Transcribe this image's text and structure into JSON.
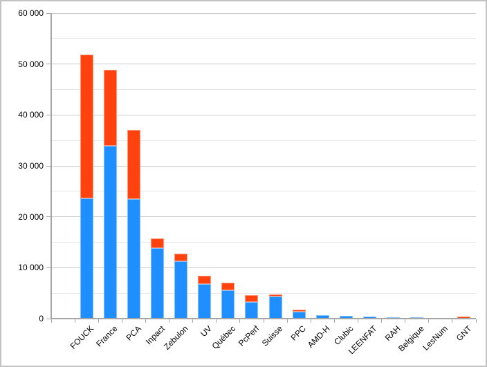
{
  "chart_data": {
    "type": "bar",
    "stacked": true,
    "legend": "none",
    "grid": "horizontal",
    "leading_empty_slot": true,
    "categories": [
      "FOUCK",
      "France",
      "PCA",
      "Inpact",
      "Zebulon",
      "UV",
      "Québec",
      "PcPerf",
      "Suisse",
      "PPC",
      "AMD-H",
      "Clubic",
      "LEENFAT",
      "RAH",
      "Belgique",
      "LesNum",
      "GNT"
    ],
    "series": [
      {
        "name": "blue-segment",
        "color": "#1F8FFF",
        "values": [
          23600,
          34000,
          23500,
          13900,
          11300,
          6800,
          5600,
          3300,
          4300,
          1300,
          650,
          500,
          400,
          250,
          250,
          200,
          0
        ]
      },
      {
        "name": "orange-segment",
        "color": "#FF420E",
        "values": [
          28300,
          14900,
          13600,
          1900,
          1500,
          1600,
          1400,
          1300,
          400,
          400,
          0,
          0,
          0,
          0,
          0,
          0,
          450
        ]
      }
    ],
    "ylim": [
      0,
      60000
    ],
    "y_major_step": 10000,
    "y_minor_step": 5000,
    "y_tick_labels": [
      "0",
      "10 000",
      "20 000",
      "30 000",
      "40 000",
      "50 000",
      "60 000"
    ]
  },
  "colors": {
    "grid_major": "#c9c9c9",
    "grid_minor": "#e7e7e7",
    "axis": "#a6a6a6",
    "frame": "#c2c2c2",
    "text": "#000000",
    "background": "#ffffff"
  }
}
